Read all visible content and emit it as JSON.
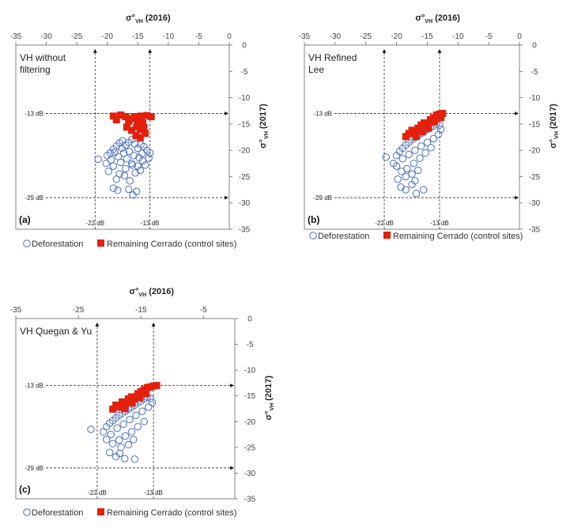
{
  "colors": {
    "deforestation": "#4a6fc7",
    "remaining": "#e3200c",
    "axis": "#666666",
    "reference": "#333333"
  },
  "legend": {
    "deforestation": "Deforestation",
    "remaining": "Remaining Cerrado (control sites)"
  },
  "chart_data": [
    {
      "type": "scatter",
      "panel_label": "(a)",
      "title_lines": [
        "VH without",
        "filtering"
      ],
      "x_axis": {
        "label_main": "σ°",
        "label_sub": "VH",
        "label_tail": " (2016)",
        "range": [
          -35,
          0
        ],
        "ticks": [
          -35,
          -30,
          -25,
          -20,
          -15,
          -10,
          -5,
          0
        ]
      },
      "y_axis": {
        "label_main": "σ°",
        "label_sub": "VH",
        "label_tail": " (2017)",
        "range": [
          -35,
          0
        ],
        "ticks": [
          0,
          -5,
          -10,
          -15,
          -20,
          -25,
          -30,
          -35
        ]
      },
      "reference_lines": {
        "x": [
          -22,
          -13
        ],
        "y": [
          -13,
          -29
        ],
        "x_labels": [
          "-22 dB",
          "-13 dB"
        ],
        "y_labels": [
          "-13 dB",
          "-29 dB"
        ]
      },
      "series": [
        {
          "name": "Deforestation",
          "marker": "open-circle",
          "points": [
            [
              -21.5,
              -21.7
            ],
            [
              -20,
              -21
            ],
            [
              -19.5,
              -20.5
            ],
            [
              -19,
              -19.8
            ],
            [
              -18.5,
              -19.2
            ],
            [
              -18,
              -18.6
            ],
            [
              -17.5,
              -18.2
            ],
            [
              -17,
              -19
            ],
            [
              -16.5,
              -18.5
            ],
            [
              -16,
              -18
            ],
            [
              -15.5,
              -18.8
            ],
            [
              -15,
              -19.6
            ],
            [
              -14.5,
              -18.9
            ],
            [
              -14,
              -19.3
            ],
            [
              -13.5,
              -20
            ],
            [
              -13,
              -20.5
            ],
            [
              -13.2,
              -21.5
            ],
            [
              -14.2,
              -22
            ],
            [
              -15,
              -23
            ],
            [
              -16,
              -22.5
            ],
            [
              -17,
              -23.5
            ],
            [
              -18,
              -24.5
            ],
            [
              -19,
              -23
            ],
            [
              -19.8,
              -24
            ],
            [
              -18.5,
              -25.5
            ],
            [
              -17.2,
              -24.8
            ],
            [
              -16.3,
              -25.8
            ],
            [
              -15.4,
              -24.3
            ],
            [
              -14.6,
              -23.8
            ],
            [
              -13.8,
              -22.8
            ],
            [
              -19,
              -27.2
            ],
            [
              -18.3,
              -27.6
            ],
            [
              -16.5,
              -27.4
            ],
            [
              -15.2,
              -27.8
            ],
            [
              -15.8,
              -28.5
            ],
            [
              -20.2,
              -22.5
            ],
            [
              -19.4,
              -21.8
            ],
            [
              -18.2,
              -21.2
            ],
            [
              -17.3,
              -20.5
            ],
            [
              -16.4,
              -20.2
            ],
            [
              -15.6,
              -21
            ],
            [
              -14.8,
              -21.4
            ],
            [
              -17.8,
              -22.3
            ],
            [
              -16.8,
              -21.6
            ],
            [
              -15.9,
              -22.8
            ],
            [
              -14.3,
              -20.6
            ],
            [
              -18.8,
              -20.4
            ],
            [
              -17.6,
              -19.6
            ]
          ]
        },
        {
          "name": "Remaining Cerrado (control sites)",
          "marker": "filled-square",
          "points": [
            [
              -19,
              -13.5
            ],
            [
              -18.5,
              -14.2
            ],
            [
              -17.8,
              -13.3
            ],
            [
              -17,
              -13.6
            ],
            [
              -16.5,
              -14.5
            ],
            [
              -16,
              -14
            ],
            [
              -15.5,
              -13.6
            ],
            [
              -15,
              -14.4
            ],
            [
              -14.5,
              -13.5
            ],
            [
              -14.2,
              -14.8
            ],
            [
              -13.5,
              -13.4
            ],
            [
              -12.8,
              -13.6
            ],
            [
              -16.8,
              -15.6
            ],
            [
              -16,
              -16.2
            ],
            [
              -15.2,
              -15.5
            ],
            [
              -14.6,
              -16
            ],
            [
              -14,
              -15.6
            ],
            [
              -13.8,
              -16.8
            ],
            [
              -15.3,
              -17.2
            ],
            [
              -14.6,
              -17.6
            ]
          ]
        }
      ]
    },
    {
      "type": "scatter",
      "panel_label": "(b)",
      "title_lines": [
        "VH Refined",
        "Lee"
      ],
      "x_axis": {
        "label_main": "σ°",
        "label_sub": "VH",
        "label_tail": " (2016)",
        "range": [
          -35,
          0
        ],
        "ticks": [
          -35,
          -30,
          -25,
          -20,
          -15,
          -10,
          -5,
          0
        ]
      },
      "y_axis": {
        "label_main": "σ°",
        "label_sub": "VH",
        "label_tail": " (2017)",
        "range": [
          -35,
          0
        ],
        "ticks": [
          0,
          -5,
          -10,
          -15,
          -20,
          -25,
          -30,
          -35
        ]
      },
      "reference_lines": {
        "x": [
          -22,
          -13
        ],
        "y": [
          -13,
          -29
        ],
        "x_labels": [
          "-22 dB",
          "-13 dB"
        ],
        "y_labels": [
          "-13 dB",
          "-29 dB"
        ]
      },
      "series": [
        {
          "name": "Deforestation",
          "marker": "open-circle",
          "points": [
            [
              -21.7,
              -21.3
            ],
            [
              -20.5,
              -22.5
            ],
            [
              -20,
              -21
            ],
            [
              -19.5,
              -20.2
            ],
            [
              -19,
              -19.6
            ],
            [
              -18.5,
              -19
            ],
            [
              -18,
              -18.5
            ],
            [
              -17.5,
              -18
            ],
            [
              -17,
              -17.6
            ],
            [
              -16.5,
              -17.2
            ],
            [
              -16,
              -16.8
            ],
            [
              -15.5,
              -16.4
            ],
            [
              -15,
              -16
            ],
            [
              -14.5,
              -15.6
            ],
            [
              -14,
              -15.4
            ],
            [
              -13.5,
              -15
            ],
            [
              -13,
              -15.2
            ],
            [
              -12.8,
              -16
            ],
            [
              -13.2,
              -17
            ],
            [
              -14,
              -17.8
            ],
            [
              -15,
              -18.5
            ],
            [
              -16,
              -19.2
            ],
            [
              -17,
              -20
            ],
            [
              -18,
              -20.8
            ],
            [
              -19,
              -21.6
            ],
            [
              -20,
              -23
            ],
            [
              -19.2,
              -24
            ],
            [
              -18.3,
              -23.5
            ],
            [
              -17.2,
              -22.5
            ],
            [
              -16.2,
              -21.5
            ],
            [
              -15.3,
              -20.5
            ],
            [
              -14.4,
              -19.5
            ],
            [
              -18.5,
              -25
            ],
            [
              -17.5,
              -24.5
            ],
            [
              -16.5,
              -23.8
            ],
            [
              -19.3,
              -27
            ],
            [
              -18.5,
              -27.5
            ],
            [
              -17.5,
              -26.5
            ],
            [
              -16.8,
              -28.2
            ],
            [
              -15.6,
              -27.5
            ],
            [
              -17,
              -25.8
            ],
            [
              -19.8,
              -25.5
            ]
          ]
        },
        {
          "name": "Remaining Cerrado (control sites)",
          "marker": "filled-square",
          "points": [
            [
              -18.5,
              -17.4
            ],
            [
              -18,
              -16.8
            ],
            [
              -17.5,
              -16.2
            ],
            [
              -17,
              -16.8
            ],
            [
              -16.5,
              -15.8
            ],
            [
              -16,
              -15.2
            ],
            [
              -15.5,
              -14.8
            ],
            [
              -15,
              -15.5
            ],
            [
              -14.5,
              -14.2
            ],
            [
              -14,
              -13.8
            ],
            [
              -13.5,
              -13.3
            ],
            [
              -13,
              -13.1
            ],
            [
              -12.5,
              -13
            ],
            [
              -16.8,
              -17.4
            ],
            [
              -15.8,
              -16.5
            ],
            [
              -14.8,
              -15.8
            ],
            [
              -13.8,
              -14.6
            ],
            [
              -12.8,
              -13.8
            ]
          ]
        }
      ]
    },
    {
      "type": "scatter",
      "panel_label": "(c)",
      "title_lines": [
        "VH Quegan & Yu"
      ],
      "x_axis": {
        "label_main": "σ°",
        "label_sub": "VH",
        "label_tail": " (2016)",
        "range": [
          -35,
          0
        ],
        "ticks": [
          -35,
          -25,
          -15,
          -5
        ]
      },
      "y_axis": {
        "label_main": "σ°",
        "label_sub": "VH",
        "label_tail": " (2017)",
        "range": [
          -35,
          0
        ],
        "ticks": [
          0,
          -5,
          -10,
          -15,
          -20,
          -25,
          -30,
          -35
        ]
      },
      "reference_lines": {
        "x": [
          -22,
          -13
        ],
        "y": [
          -13,
          -29
        ],
        "x_labels": [
          "-22 dB",
          "-13 dB"
        ],
        "y_labels": [
          "-13 dB",
          "-29 dB"
        ]
      },
      "series": [
        {
          "name": "Deforestation",
          "marker": "open-circle",
          "points": [
            [
              -23,
              -21.5
            ],
            [
              -21,
              -22
            ],
            [
              -20.5,
              -21
            ],
            [
              -20,
              -20.3
            ],
            [
              -19.5,
              -19.8
            ],
            [
              -19,
              -19.3
            ],
            [
              -18.5,
              -18.8
            ],
            [
              -18,
              -18.4
            ],
            [
              -17.5,
              -18
            ],
            [
              -17,
              -17.6
            ],
            [
              -16.5,
              -17.2
            ],
            [
              -16,
              -16.8
            ],
            [
              -15.5,
              -16.3
            ],
            [
              -15,
              -16
            ],
            [
              -14.5,
              -15.6
            ],
            [
              -14,
              -15.2
            ],
            [
              -13.5,
              -15.5
            ],
            [
              -13.2,
              -16.3
            ],
            [
              -13.8,
              -17.2
            ],
            [
              -14.8,
              -18
            ],
            [
              -15.8,
              -18.8
            ],
            [
              -16.8,
              -19.6
            ],
            [
              -17.8,
              -20.5
            ],
            [
              -18.8,
              -21.3
            ],
            [
              -19.8,
              -22.5
            ],
            [
              -20.5,
              -23.5
            ],
            [
              -19.5,
              -24.3
            ],
            [
              -18.5,
              -23.6
            ],
            [
              -17.5,
              -22.8
            ],
            [
              -16.5,
              -22
            ],
            [
              -15.5,
              -21
            ],
            [
              -14.5,
              -20
            ],
            [
              -18.2,
              -25
            ],
            [
              -17,
              -24.5
            ],
            [
              -16.2,
              -23.5
            ],
            [
              -20,
              -26
            ],
            [
              -19,
              -26.8
            ],
            [
              -17.6,
              -27.2
            ],
            [
              -16,
              -27.3
            ],
            [
              -18.4,
              -26.2
            ]
          ]
        },
        {
          "name": "Remaining Cerrado (control sites)",
          "marker": "filled-square",
          "points": [
            [
              -19.5,
              -17.6
            ],
            [
              -19,
              -16.8
            ],
            [
              -18.5,
              -17.2
            ],
            [
              -18,
              -16.2
            ],
            [
              -17.5,
              -16.6
            ],
            [
              -17,
              -15.6
            ],
            [
              -16.5,
              -15.2
            ],
            [
              -16,
              -15.6
            ],
            [
              -15.5,
              -14.6
            ],
            [
              -15,
              -14.2
            ],
            [
              -14.5,
              -13.8
            ],
            [
              -14,
              -13.4
            ],
            [
              -13.5,
              -13.3
            ],
            [
              -13,
              -13.1
            ],
            [
              -12.5,
              -13
            ],
            [
              -17.6,
              -17.5
            ],
            [
              -16.4,
              -16.4
            ],
            [
              -15.2,
              -15.4
            ],
            [
              -14.2,
              -14.6
            ]
          ]
        }
      ]
    }
  ]
}
